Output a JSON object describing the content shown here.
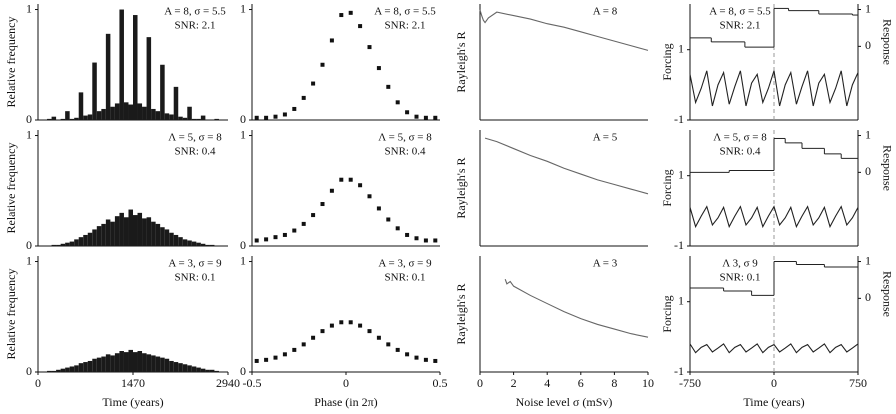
{
  "chart_data": [
    {
      "type": "histogram",
      "ylabel": "Relative frequency",
      "annotations": [
        "A = 8, σ = 5.5",
        "SNR: 2.1"
      ],
      "color": "#1a1a1a",
      "bins": [
        0,
        70,
        140,
        210,
        280,
        350,
        420,
        490,
        560,
        630,
        700,
        770,
        840,
        910,
        980,
        1050,
        1120,
        1190,
        1260,
        1330,
        1400,
        1470,
        1540,
        1610,
        1680,
        1750,
        1820,
        1890,
        1960,
        2030,
        2100,
        2170,
        2240,
        2310,
        2380,
        2450,
        2520,
        2590,
        2660,
        2730,
        2800,
        2870,
        2940
      ],
      "values": [
        0,
        0,
        0.01,
        0.03,
        0,
        0.01,
        0.08,
        0.01,
        0.02,
        0.25,
        0.04,
        0.05,
        0.52,
        0.08,
        0.1,
        0.78,
        0.12,
        0.15,
        1.0,
        0.16,
        0.14,
        0.95,
        0.15,
        0.12,
        0.75,
        0.1,
        0.08,
        0.5,
        0.06,
        0.05,
        0.3,
        0.03,
        0.02,
        0.12,
        0.01,
        0.01,
        0.04,
        0,
        0,
        0.01,
        0,
        0
      ],
      "xlim": [
        0,
        2940
      ],
      "ylim": [
        0,
        1.05
      ],
      "yticks": [
        0,
        1
      ]
    },
    {
      "type": "scatter",
      "annotations": [
        "A = 8, σ = 5.5",
        "SNR: 2.1"
      ],
      "color": "#111",
      "x": [
        -0.475,
        -0.425,
        -0.375,
        -0.325,
        -0.275,
        -0.225,
        -0.175,
        -0.125,
        -0.075,
        -0.025,
        0.025,
        0.075,
        0.125,
        0.175,
        0.225,
        0.275,
        0.325,
        0.375,
        0.425,
        0.475
      ],
      "values": [
        0.02,
        0.02,
        0.03,
        0.05,
        0.1,
        0.2,
        0.33,
        0.5,
        0.72,
        0.95,
        0.97,
        0.85,
        0.66,
        0.47,
        0.3,
        0.16,
        0.07,
        0.03,
        0.02,
        0.02
      ],
      "xlim": [
        -0.5,
        0.5
      ],
      "ylim": [
        0,
        1.05
      ],
      "yticks": [
        0,
        1
      ]
    },
    {
      "type": "line",
      "ylabel": "Rayleigh's R",
      "annotations": [
        "A = 8"
      ],
      "xlim": [
        0,
        10
      ],
      "ylim": [
        0,
        1
      ],
      "series": [
        {
          "color": "#666",
          "x": [
            0,
            0.1,
            0.2,
            0.3,
            0.5,
            1,
            2,
            3,
            4,
            5,
            6,
            7,
            8,
            9,
            10
          ],
          "values": [
            0.95,
            0.9,
            0.86,
            0.84,
            0.88,
            0.93,
            0.9,
            0.87,
            0.83,
            0.8,
            0.76,
            0.72,
            0.68,
            0.64,
            0.6
          ]
        }
      ]
    },
    {
      "type": "line",
      "ylabel": "Forcing",
      "y2label": "Response",
      "annotations": [
        "A = 8, σ = 5.5",
        "SNR: 2.1"
      ],
      "vline": 0,
      "xlim": [
        -750,
        750
      ],
      "ylim": [
        -1,
        2.3
      ],
      "yticks": [
        -1,
        1
      ],
      "y2lim": [
        -2,
        1.15
      ],
      "y2ticks": [
        0,
        1
      ],
      "series": [
        {
          "color": "#222",
          "x": [
            -750,
            -700,
            -650,
            -600,
            -550,
            -500,
            -450,
            -400,
            -350,
            -300,
            -250,
            -200,
            -150,
            -100,
            -50,
            0,
            50,
            100,
            150,
            200,
            250,
            300,
            350,
            400,
            450,
            500,
            550,
            600,
            650,
            700,
            750
          ],
          "values": [
            0.3,
            -0.5,
            -0.1,
            0.4,
            -0.6,
            0.0,
            0.35,
            -0.55,
            -0.05,
            0.4,
            -0.6,
            0.05,
            0.3,
            -0.5,
            -0.1,
            0.4,
            -0.6,
            0.0,
            0.35,
            -0.55,
            -0.05,
            0.4,
            -0.6,
            0.05,
            0.3,
            -0.5,
            -0.1,
            0.4,
            -0.6,
            0.0,
            0.35
          ]
        },
        {
          "color": "#222",
          "axis": "y2",
          "step": "post",
          "x": [
            -750,
            -560,
            -260,
            0,
            130,
            400,
            700
          ],
          "values": [
            0.23,
            0.12,
            -0.02,
            1.03,
            0.97,
            0.88,
            0.85
          ]
        }
      ]
    },
    {
      "type": "histogram",
      "ylabel": "Relative frequency",
      "annotations": [
        "Λ = 5, σ = 8",
        "SNR: 0.4"
      ],
      "color": "#1a1a1a",
      "bins": [
        0,
        70,
        140,
        210,
        280,
        350,
        420,
        490,
        560,
        630,
        700,
        770,
        840,
        910,
        980,
        1050,
        1120,
        1190,
        1260,
        1330,
        1400,
        1470,
        1540,
        1610,
        1680,
        1750,
        1820,
        1890,
        1960,
        2030,
        2100,
        2170,
        2240,
        2310,
        2380,
        2450,
        2520,
        2590,
        2660,
        2730,
        2800,
        2870,
        2940
      ],
      "values": [
        0,
        0,
        0,
        0.01,
        0.01,
        0.02,
        0.03,
        0.04,
        0.06,
        0.08,
        0.1,
        0.12,
        0.15,
        0.18,
        0.2,
        0.24,
        0.22,
        0.27,
        0.3,
        0.26,
        0.33,
        0.28,
        0.3,
        0.25,
        0.26,
        0.22,
        0.2,
        0.17,
        0.15,
        0.12,
        0.1,
        0.08,
        0.06,
        0.05,
        0.04,
        0.03,
        0.02,
        0.01,
        0.01,
        0,
        0,
        0
      ],
      "xlim": [
        0,
        2940
      ],
      "ylim": [
        0,
        1.05
      ],
      "yticks": [
        0,
        1
      ]
    },
    {
      "type": "scatter",
      "annotations": [
        "Λ = 5, σ = 8",
        "SNR: 0.4"
      ],
      "color": "#111",
      "x": [
        -0.475,
        -0.425,
        -0.375,
        -0.325,
        -0.275,
        -0.225,
        -0.175,
        -0.125,
        -0.075,
        -0.025,
        0.025,
        0.075,
        0.125,
        0.175,
        0.225,
        0.275,
        0.325,
        0.375,
        0.425,
        0.475
      ],
      "values": [
        0.05,
        0.06,
        0.08,
        0.1,
        0.14,
        0.2,
        0.28,
        0.38,
        0.5,
        0.6,
        0.6,
        0.55,
        0.45,
        0.34,
        0.24,
        0.16,
        0.1,
        0.07,
        0.05,
        0.05
      ],
      "xlim": [
        -0.5,
        0.5
      ],
      "ylim": [
        0,
        1.05
      ],
      "yticks": [
        0,
        1
      ]
    },
    {
      "type": "line",
      "ylabel": "Rayleigh's R",
      "annotations": [
        "A = 5"
      ],
      "xlim": [
        0,
        10
      ],
      "ylim": [
        0,
        1
      ],
      "series": [
        {
          "color": "#666",
          "x": [
            0.3,
            1,
            2,
            3,
            4,
            5,
            6,
            7,
            8,
            9,
            10
          ],
          "values": [
            0.93,
            0.9,
            0.84,
            0.78,
            0.73,
            0.67,
            0.62,
            0.57,
            0.53,
            0.49,
            0.45
          ]
        }
      ]
    },
    {
      "type": "line",
      "ylabel": "Forcing",
      "y2label": "Response",
      "annotations": [
        "Λ = 5, σ = 8",
        "SNR: 0.4"
      ],
      "vline": 0,
      "xlim": [
        -750,
        750
      ],
      "ylim": [
        -1,
        2.3
      ],
      "yticks": [
        -1,
        1
      ],
      "y2lim": [
        -2,
        1.15
      ],
      "y2ticks": [
        0,
        1
      ],
      "series": [
        {
          "color": "#222",
          "x": [
            -750,
            -700,
            -650,
            -600,
            -550,
            -500,
            -450,
            -400,
            -350,
            -300,
            -250,
            -200,
            -150,
            -100,
            -50,
            0,
            50,
            100,
            150,
            200,
            250,
            300,
            350,
            400,
            450,
            500,
            550,
            600,
            650,
            700,
            750
          ],
          "values": [
            0.1,
            -0.45,
            -0.15,
            0.12,
            -0.4,
            -0.2,
            0.1,
            -0.45,
            -0.15,
            0.12,
            -0.4,
            -0.2,
            0.1,
            -0.45,
            -0.15,
            0.12,
            -0.4,
            -0.2,
            0.1,
            -0.45,
            -0.15,
            0.12,
            -0.4,
            -0.2,
            0.1,
            -0.45,
            -0.15,
            0.12,
            -0.4,
            -0.2,
            0.1
          ]
        },
        {
          "color": "#222",
          "axis": "y2",
          "step": "post",
          "x": [
            -750,
            -400,
            0,
            100,
            250,
            450,
            600
          ],
          "values": [
            0.0,
            0.05,
            0.92,
            0.8,
            0.65,
            0.5,
            0.38
          ]
        }
      ]
    },
    {
      "type": "histogram",
      "ylabel": "Relative frequency",
      "annotations": [
        "A = 3, σ = 9",
        "SNR: 0.1"
      ],
      "color": "#1a1a1a",
      "bins": [
        0,
        70,
        140,
        210,
        280,
        350,
        420,
        490,
        560,
        630,
        700,
        770,
        840,
        910,
        980,
        1050,
        1120,
        1190,
        1260,
        1330,
        1400,
        1470,
        1540,
        1610,
        1680,
        1750,
        1820,
        1890,
        1960,
        2030,
        2100,
        2170,
        2240,
        2310,
        2380,
        2450,
        2520,
        2590,
        2660,
        2730,
        2800,
        2870,
        2940
      ],
      "values": [
        0,
        0,
        0.01,
        0.01,
        0.02,
        0.03,
        0.04,
        0.05,
        0.06,
        0.08,
        0.09,
        0.1,
        0.12,
        0.13,
        0.14,
        0.16,
        0.15,
        0.17,
        0.19,
        0.18,
        0.2,
        0.18,
        0.19,
        0.17,
        0.16,
        0.15,
        0.14,
        0.13,
        0.12,
        0.1,
        0.09,
        0.08,
        0.07,
        0.06,
        0.05,
        0.04,
        0.03,
        0.02,
        0.02,
        0.01,
        0,
        0
      ],
      "xlim": [
        0,
        2940
      ],
      "ylim": [
        0,
        1.05
      ],
      "yticks": [
        0,
        1
      ],
      "xticks": [
        0,
        1470,
        2940
      ],
      "xlabel": "Time (years)"
    },
    {
      "type": "scatter",
      "annotations": [
        "A = 3, σ = 9",
        "SNR: 0.1"
      ],
      "color": "#111",
      "x": [
        -0.475,
        -0.425,
        -0.375,
        -0.325,
        -0.275,
        -0.225,
        -0.175,
        -0.125,
        -0.075,
        -0.025,
        0.025,
        0.075,
        0.125,
        0.175,
        0.225,
        0.275,
        0.325,
        0.375,
        0.425,
        0.475
      ],
      "values": [
        0.1,
        0.11,
        0.13,
        0.16,
        0.2,
        0.25,
        0.31,
        0.37,
        0.42,
        0.45,
        0.45,
        0.42,
        0.37,
        0.31,
        0.25,
        0.2,
        0.16,
        0.13,
        0.11,
        0.1
      ],
      "xlim": [
        -0.5,
        0.5
      ],
      "ylim": [
        0,
        1.05
      ],
      "yticks": [
        0,
        1
      ],
      "xticks": [
        -0.5,
        0,
        0.5
      ],
      "xlabel": "Phase (in 2π)"
    },
    {
      "type": "line",
      "ylabel": "Rayleigh's R",
      "annotations": [
        "A = 3"
      ],
      "xlim": [
        0,
        10
      ],
      "ylim": [
        0,
        1
      ],
      "xticks": [
        0,
        2,
        4,
        6,
        8,
        10
      ],
      "xlabel": "Noise level σ (mSv)",
      "series": [
        {
          "color": "#666",
          "x": [
            1.5,
            1.6,
            1.8,
            2,
            3,
            4,
            5,
            6,
            7,
            8,
            9,
            10
          ],
          "values": [
            0.8,
            0.76,
            0.78,
            0.74,
            0.66,
            0.59,
            0.52,
            0.46,
            0.41,
            0.37,
            0.33,
            0.3
          ]
        }
      ]
    },
    {
      "type": "line",
      "ylabel": "Forcing",
      "y2label": "Response",
      "annotations": [
        "Λ 3, σ 9",
        "SNR: 0.1"
      ],
      "vline": 0,
      "xlim": [
        -750,
        750
      ],
      "ylim": [
        -1,
        2.3
      ],
      "yticks": [
        -1,
        1
      ],
      "y2lim": [
        -2,
        1.15
      ],
      "y2ticks": [
        0,
        1
      ],
      "xticks": [
        -750,
        0,
        750
      ],
      "xlabel": "Time (years)",
      "series": [
        {
          "color": "#222",
          "x": [
            -750,
            -700,
            -650,
            -600,
            -550,
            -500,
            -450,
            -400,
            -350,
            -300,
            -250,
            -200,
            -150,
            -100,
            -50,
            0,
            50,
            100,
            150,
            200,
            250,
            300,
            350,
            400,
            450,
            500,
            550,
            600,
            650,
            700,
            750
          ],
          "values": [
            -0.2,
            -0.45,
            -0.3,
            -0.22,
            -0.43,
            -0.32,
            -0.2,
            -0.45,
            -0.3,
            -0.22,
            -0.43,
            -0.32,
            -0.2,
            -0.45,
            -0.3,
            -0.22,
            -0.43,
            -0.32,
            -0.2,
            -0.45,
            -0.3,
            -0.22,
            -0.43,
            -0.32,
            -0.2,
            -0.45,
            -0.3,
            -0.22,
            -0.43,
            -0.32,
            -0.2
          ]
        },
        {
          "color": "#222",
          "axis": "y2",
          "step": "post",
          "x": [
            -750,
            -450,
            -200,
            0,
            200,
            450
          ],
          "values": [
            0.28,
            0.2,
            0.08,
            1.0,
            0.92,
            0.85
          ]
        }
      ]
    }
  ]
}
